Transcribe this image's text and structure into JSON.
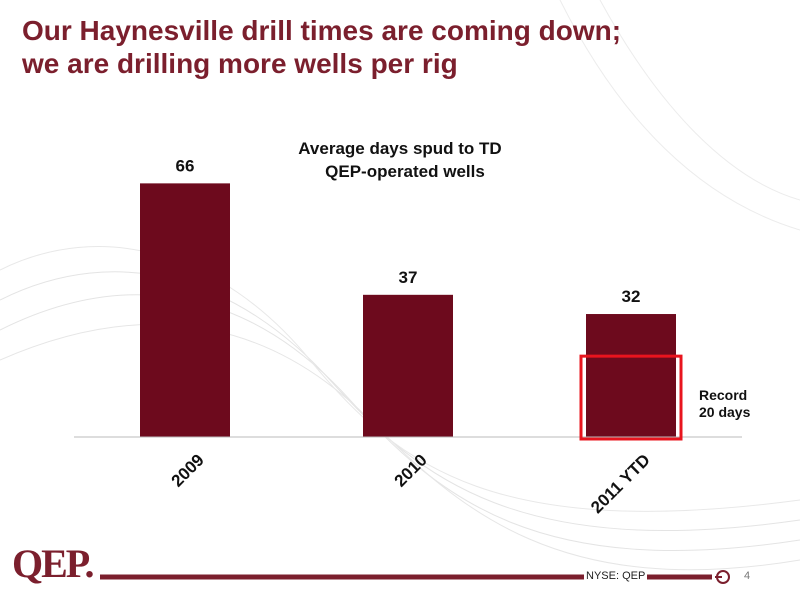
{
  "slide": {
    "title_line1": "Our Haynesville drill times are coming down;",
    "title_line2": "we are drilling more wells per rig",
    "footer": "NYSE: QEP",
    "page_number": "4",
    "logo": "QEP"
  },
  "chart_data": {
    "type": "bar",
    "title_line1": "Average days spud to TD",
    "title_line2": "QEP-operated wells",
    "categories": [
      "2009",
      "2010",
      "2011 YTD"
    ],
    "values": [
      66,
      37,
      32
    ],
    "data_labels": [
      "66",
      "37",
      "32"
    ],
    "xlabel": "",
    "ylabel": "",
    "ylim": [
      0,
      70
    ],
    "grid": false,
    "bar_color": "#6d0a1d",
    "highlight": {
      "category": "2011 YTD",
      "value": 20,
      "label_line1": "Record",
      "label_line2": "20 days",
      "color": "#e8141e"
    }
  },
  "colors": {
    "title": "#7b1f2d",
    "accent": "#7b1f2d"
  }
}
